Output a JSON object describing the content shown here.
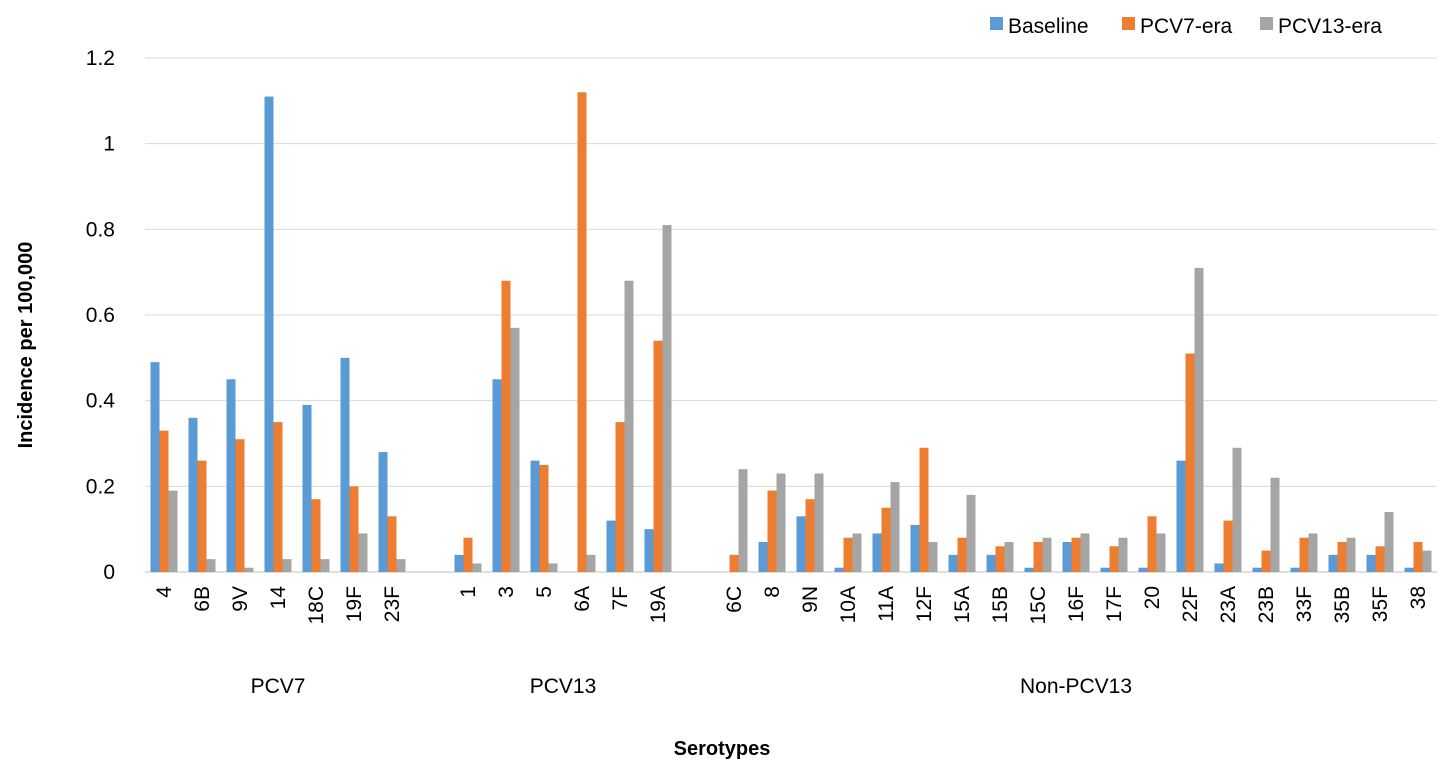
{
  "chart_data": {
    "type": "bar",
    "title": "",
    "xlabel": "Serotypes",
    "ylabel": "Incidence  per 100,000",
    "ylim": [
      0,
      1.2
    ],
    "yticks": [
      "0",
      "0.2",
      "0.4",
      "0.6",
      "0.8",
      "1",
      "1.2"
    ],
    "grid": true,
    "legend_position": "top-right",
    "colors": {
      "Baseline": "#5b9bd5",
      "PCV7-era": "#ed7d31",
      "PCV13-era": "#a5a5a5"
    },
    "groups": [
      {
        "label": "PCV7",
        "categories": [
          "4",
          "6B",
          "9V",
          "14",
          "18C",
          "19F",
          "23F"
        ],
        "series": [
          {
            "name": "Baseline",
            "values": [
              0.49,
              0.36,
              0.45,
              1.11,
              0.39,
              0.5,
              0.28
            ]
          },
          {
            "name": "PCV7-era",
            "values": [
              0.33,
              0.26,
              0.31,
              0.35,
              0.17,
              0.2,
              0.13
            ]
          },
          {
            "name": "PCV13-era",
            "values": [
              0.19,
              0.03,
              0.01,
              0.03,
              0.03,
              0.09,
              0.03
            ]
          }
        ]
      },
      {
        "label": "PCV13",
        "categories": [
          "1",
          "3",
          "5",
          "6A",
          "7F",
          "19A"
        ],
        "series": [
          {
            "name": "Baseline",
            "values": [
              0.04,
              0.45,
              0.26,
              0.0,
              0.12,
              0.1
            ]
          },
          {
            "name": "PCV7-era",
            "values": [
              0.08,
              0.68,
              0.25,
              1.12,
              0.35,
              0.54
            ]
          },
          {
            "name": "PCV13-era",
            "values": [
              0.02,
              0.57,
              0.02,
              0.04,
              0.68,
              0.81
            ]
          }
        ]
      },
      {
        "label": "Non-PCV13",
        "categories": [
          "6C",
          "8",
          "9N",
          "10A",
          "11A",
          "12F",
          "15A",
          "15B",
          "15C",
          "16F",
          "17F",
          "20",
          "22F",
          "23A",
          "23B",
          "33F",
          "35B",
          "35F",
          "38"
        ],
        "series": [
          {
            "name": "Baseline",
            "values": [
              0.0,
              0.07,
              0.13,
              0.01,
              0.09,
              0.11,
              0.04,
              0.04,
              0.01,
              0.07,
              0.01,
              0.01,
              0.26,
              0.02,
              0.01,
              0.01,
              0.04,
              0.04,
              0.01
            ]
          },
          {
            "name": "PCV7-era",
            "values": [
              0.04,
              0.19,
              0.17,
              0.08,
              0.15,
              0.29,
              0.08,
              0.06,
              0.07,
              0.08,
              0.06,
              0.13,
              0.51,
              0.12,
              0.05,
              0.08,
              0.07,
              0.06,
              0.07
            ]
          },
          {
            "name": "PCV13-era",
            "values": [
              0.24,
              0.23,
              0.23,
              0.09,
              0.21,
              0.07,
              0.18,
              0.07,
              0.08,
              0.09,
              0.08,
              0.09,
              0.71,
              0.29,
              0.22,
              0.09,
              0.08,
              0.14,
              0.05
            ]
          }
        ]
      }
    ]
  }
}
